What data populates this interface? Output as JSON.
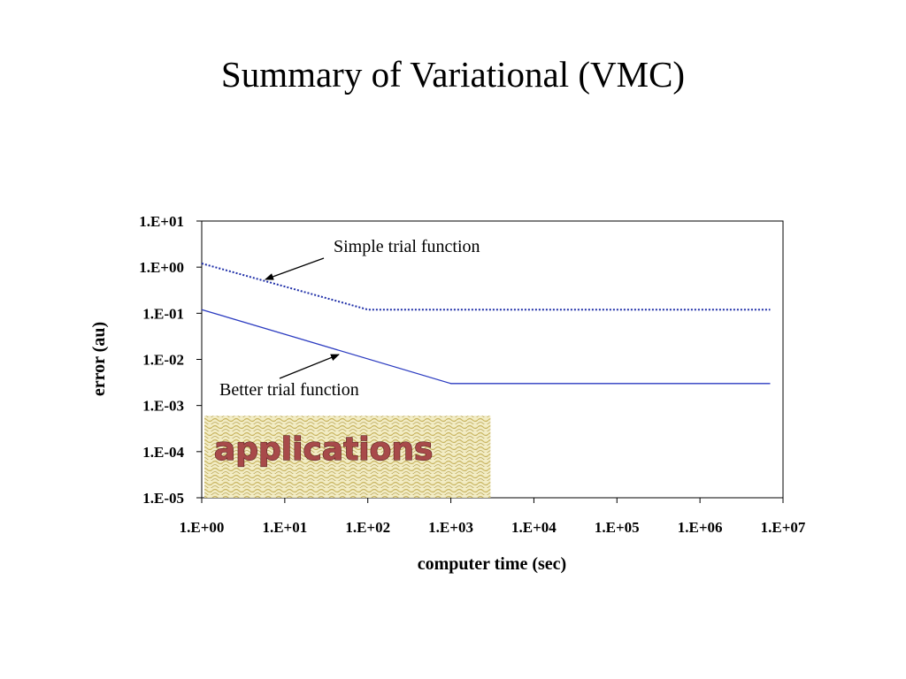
{
  "slide": {
    "title": "Summary of Variational (VMC)"
  },
  "chart_data": {
    "type": "line",
    "xlabel": "computer time (sec)",
    "ylabel": "error (au)",
    "x_scale": "log",
    "y_scale": "log",
    "xlim": [
      1,
      10000000
    ],
    "ylim": [
      1e-05,
      10
    ],
    "x_ticks": [
      1,
      10,
      100,
      1000,
      10000,
      100000,
      1000000,
      10000000
    ],
    "x_tick_labels": [
      "1.E+00",
      "1.E+01",
      "1.E+02",
      "1.E+03",
      "1.E+04",
      "1.E+05",
      "1.E+06",
      "1.E+07"
    ],
    "y_ticks": [
      10,
      1,
      0.1,
      0.01,
      0.001,
      0.0001,
      1e-05
    ],
    "y_tick_labels": [
      "1.E+01",
      "1.E+00",
      "1.E-01",
      "1.E-02",
      "1.E-03",
      "1.E-04",
      "1.E-05"
    ],
    "grid": false,
    "legend": "none",
    "series": [
      {
        "style": "dotted",
        "color": "#1f2fa8",
        "points": [
          [
            1,
            1.2
          ],
          [
            100,
            0.12
          ],
          [
            7000000,
            0.12
          ]
        ]
      },
      {
        "style": "solid",
        "color": "#2b3bc0",
        "points": [
          [
            1,
            0.12
          ],
          [
            1000,
            0.003
          ],
          [
            7000000,
            0.003
          ]
        ]
      }
    ],
    "annotations": [
      {
        "text": "Simple trial function",
        "target_series": 0
      },
      {
        "text": "Better trial function",
        "target_series": 1
      }
    ],
    "highlight_region": {
      "label": "applications",
      "x_range": [
        1,
        3000
      ],
      "y_range": [
        1e-05,
        0.0006
      ],
      "fill_color": "#e6dda0",
      "label_color": "#a84a4a"
    }
  }
}
